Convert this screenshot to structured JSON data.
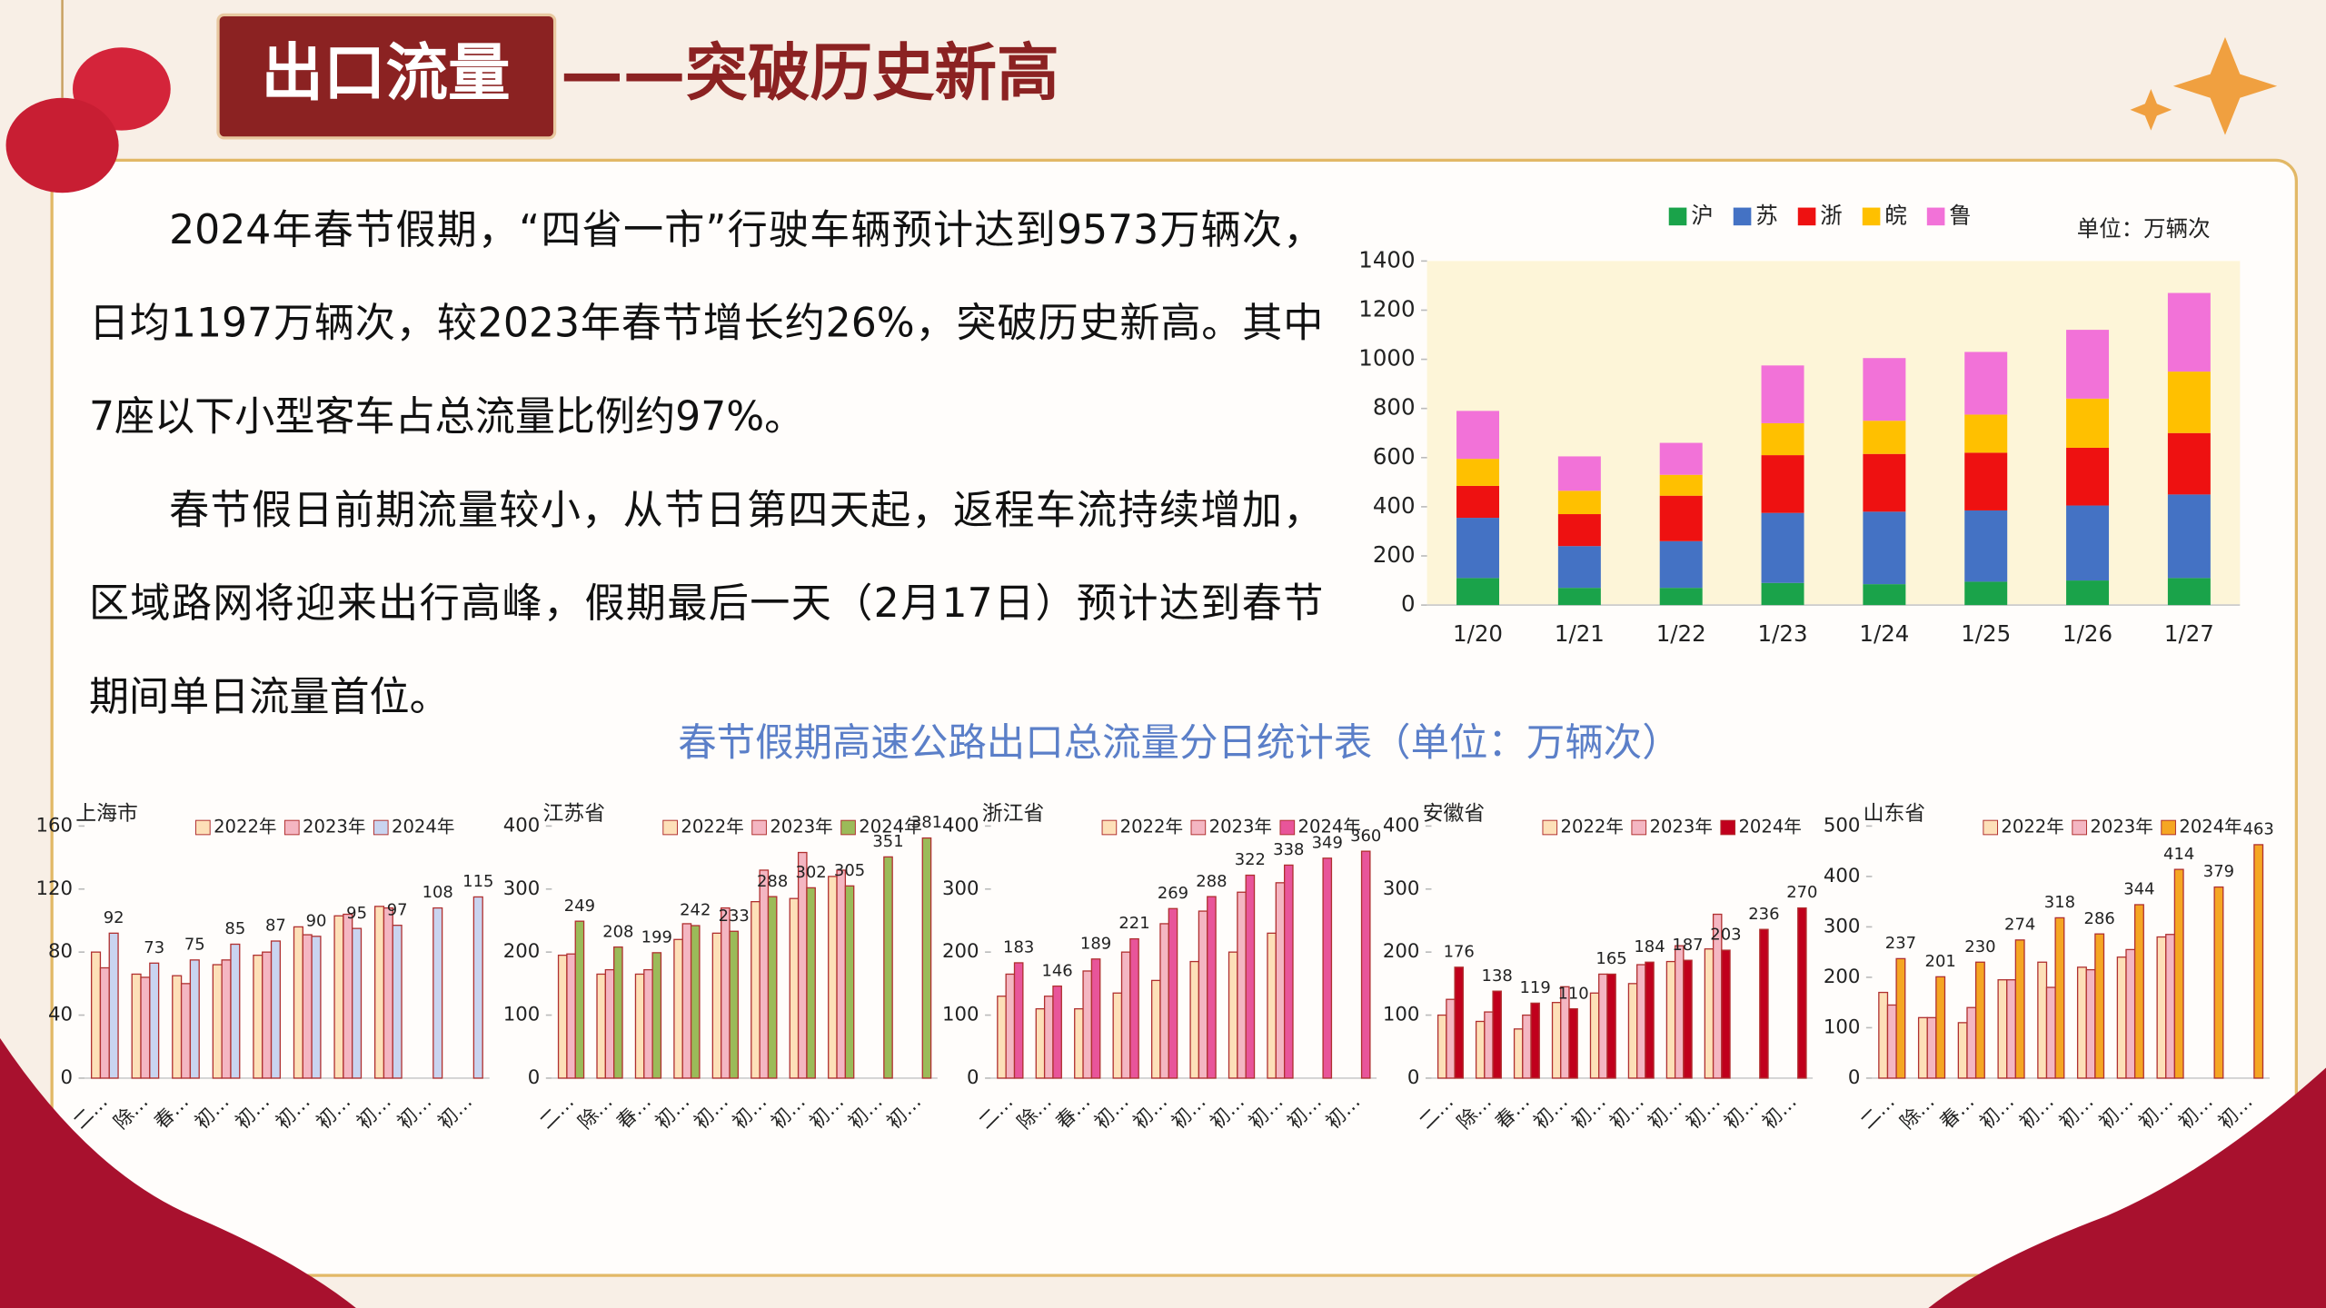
{
  "header": {
    "title": "出口流量",
    "subtitle": "——突破历史新高"
  },
  "paragraphs": [
    "2024年春节假期，“四省一市”行驶车辆预计达到9573万辆次，日均1197万辆次，较2023年春节增长约26%，突破历史新高。其中7座以下小型客车占总流量比例约97%。",
    "春节假日前期流量较小，从节日第四天起，返程车流持续增加，区域路网将迎来出行高峰，假期最后一天（2月17日）预计达到春节期间单日流量首位。"
  ],
  "table_title": "春节假期高速公路出口总流量分日统计表（单位：万辆次）",
  "chart_data": [
    {
      "type": "stacked_bar",
      "unit_label": "单位：万辆次",
      "plot_background": "#fdf5d8",
      "categories": [
        "1/20",
        "1/21",
        "1/22",
        "1/23",
        "1/24",
        "1/25",
        "1/26",
        "1/27"
      ],
      "series": [
        {
          "name": "沪",
          "color": "#1aa34a",
          "values": [
            110,
            70,
            70,
            90,
            85,
            95,
            100,
            110
          ]
        },
        {
          "name": "苏",
          "color": "#4472c4",
          "values": [
            245,
            170,
            190,
            285,
            295,
            290,
            305,
            340
          ]
        },
        {
          "name": "浙",
          "color": "#ee1111",
          "values": [
            130,
            130,
            185,
            235,
            235,
            235,
            235,
            250
          ]
        },
        {
          "name": "皖",
          "color": "#ffc000",
          "values": [
            110,
            95,
            85,
            130,
            135,
            155,
            200,
            250
          ]
        },
        {
          "name": "鲁",
          "color": "#f272d8",
          "values": [
            195,
            140,
            130,
            235,
            255,
            255,
            280,
            320
          ]
        }
      ],
      "ylim": [
        0,
        1400
      ],
      "yticks": [
        0,
        200,
        400,
        600,
        800,
        1000,
        1200,
        1400
      ]
    },
    {
      "type": "bar",
      "title": "上海市",
      "categories": [
        "二…",
        "除…",
        "春…",
        "初…",
        "初…",
        "初…",
        "初…",
        "初…",
        "初…",
        "初…"
      ],
      "series": [
        {
          "name": "2022年",
          "color": "#fde0b8",
          "values": [
            80,
            66,
            65,
            72,
            78,
            96,
            103,
            109,
            null,
            null
          ]
        },
        {
          "name": "2023年",
          "color": "#f4b6c2",
          "values": [
            70,
            64,
            60,
            75,
            80,
            91,
            104,
            108,
            null,
            null
          ]
        },
        {
          "name": "2024年",
          "color": "#c9d4f0",
          "data_labels": true,
          "values": [
            92,
            73,
            75,
            85,
            87,
            90,
            95,
            97,
            108,
            115
          ]
        }
      ],
      "ylim": [
        0,
        160
      ],
      "yticks": [
        0,
        40,
        80,
        120,
        160
      ]
    },
    {
      "type": "bar",
      "title": "江苏省",
      "categories": [
        "二…",
        "除…",
        "春…",
        "初…",
        "初…",
        "初…",
        "初…",
        "初…",
        "初…",
        "初…"
      ],
      "series": [
        {
          "name": "2022年",
          "color": "#fde0b8",
          "values": [
            195,
            165,
            165,
            220,
            230,
            280,
            285,
            320,
            null,
            null
          ]
        },
        {
          "name": "2023年",
          "color": "#f4b6c2",
          "values": [
            197,
            172,
            172,
            245,
            270,
            330,
            358,
            330,
            null,
            null
          ]
        },
        {
          "name": "2024年",
          "color": "#9bbb59",
          "data_labels": true,
          "values": [
            249,
            208,
            199,
            242,
            233,
            288,
            302,
            305,
            351,
            381
          ]
        }
      ],
      "ylim": [
        0,
        400
      ],
      "yticks": [
        0,
        100,
        200,
        300,
        400
      ]
    },
    {
      "type": "bar",
      "title": "浙江省",
      "categories": [
        "二…",
        "除…",
        "春…",
        "初…",
        "初…",
        "初…",
        "初…",
        "初…",
        "初…",
        "初…"
      ],
      "series": [
        {
          "name": "2022年",
          "color": "#fde0b8",
          "values": [
            130,
            110,
            110,
            135,
            155,
            185,
            200,
            230,
            null,
            null
          ]
        },
        {
          "name": "2023年",
          "color": "#f4b6c2",
          "values": [
            165,
            130,
            170,
            200,
            245,
            265,
            295,
            310,
            null,
            null
          ]
        },
        {
          "name": "2024年",
          "color": "#e8559a",
          "data_labels": true,
          "values": [
            183,
            146,
            189,
            221,
            269,
            288,
            322,
            338,
            349,
            360
          ]
        }
      ],
      "ylim": [
        0,
        400
      ],
      "yticks": [
        0,
        100,
        200,
        300,
        400
      ]
    },
    {
      "type": "bar",
      "title": "安徽省",
      "categories": [
        "二…",
        "除…",
        "春…",
        "初…",
        "初…",
        "初…",
        "初…",
        "初…",
        "初…",
        "初…"
      ],
      "series": [
        {
          "name": "2022年",
          "color": "#fde0b8",
          "values": [
            100,
            90,
            78,
            120,
            135,
            150,
            185,
            205,
            null,
            null
          ]
        },
        {
          "name": "2023年",
          "color": "#f4b6c2",
          "values": [
            125,
            105,
            100,
            145,
            165,
            180,
            210,
            260,
            null,
            null
          ]
        },
        {
          "name": "2024年",
          "color": "#c0001c",
          "data_labels": true,
          "values": [
            176,
            138,
            119,
            110,
            165,
            184,
            187,
            203,
            236,
            270
          ]
        }
      ],
      "ylim": [
        0,
        400
      ],
      "yticks": [
        0,
        100,
        200,
        300,
        400
      ]
    },
    {
      "type": "bar",
      "title": "山东省",
      "categories": [
        "二…",
        "除…",
        "春…",
        "初…",
        "初…",
        "初…",
        "初…",
        "初…",
        "初…",
        "初…"
      ],
      "series": [
        {
          "name": "2022年",
          "color": "#fde0b8",
          "values": [
            170,
            120,
            110,
            195,
            230,
            220,
            240,
            280,
            null,
            null
          ]
        },
        {
          "name": "2023年",
          "color": "#f4b6c2",
          "values": [
            145,
            120,
            140,
            195,
            180,
            215,
            255,
            285,
            null,
            null
          ]
        },
        {
          "name": "2024年",
          "color": "#f5a623",
          "data_labels": true,
          "values": [
            237,
            201,
            230,
            274,
            318,
            286,
            344,
            414,
            379,
            463
          ]
        }
      ],
      "ylim": [
        0,
        500
      ],
      "yticks": [
        0,
        100,
        200,
        300,
        400,
        500
      ]
    }
  ]
}
